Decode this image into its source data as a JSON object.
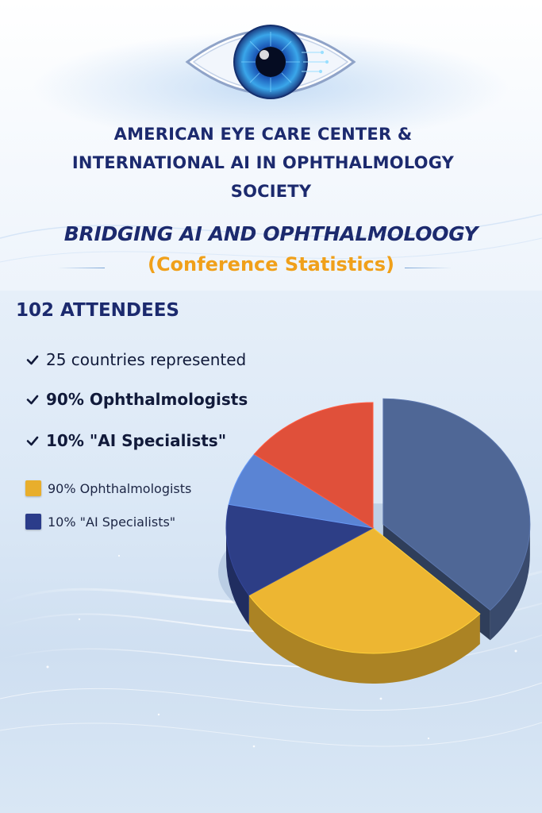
{
  "header": {
    "org_lines": [
      "AMERICAN EYE CARE CENTER &",
      "INTERNATIONAL AI IN OPHTHALMOLOGY",
      "SOCIETY"
    ],
    "title": "BRIDGING AI AND OPHTHALMOLOOGY",
    "subtitle": "(Conference Statistics)"
  },
  "stats": {
    "attendees": "102 ATTENDEES",
    "items": [
      "25 countries represented",
      "90% Ophthalmologists",
      "10% \"AI Specialists\""
    ]
  },
  "colors": {
    "navy": "#1c2a6e",
    "accent_orange": "#f0a01a",
    "slice_slate_blue": "#4f6796",
    "slice_gold": "#edb632",
    "slice_navy": "#2d3e86",
    "slice_light_blue": "#5a84d4",
    "slice_red": "#e0503a"
  },
  "chart_data": {
    "type": "pie",
    "title": "",
    "legend_position": "left",
    "legend": [
      {
        "label": "90% Ophthalmologists",
        "color": "#e8ae2c"
      },
      {
        "label": "10% \"AI Specialists\"",
        "color": "#2b3c8a"
      }
    ],
    "slices": [
      {
        "value": 37,
        "color": "#4f6796",
        "exploded": true
      },
      {
        "value": 29,
        "color": "#edb632",
        "exploded": false
      },
      {
        "value": 12,
        "color": "#2d3e86",
        "exploded": false
      },
      {
        "value": 7,
        "color": "#5a84d4",
        "exploded": false
      },
      {
        "value": 15,
        "color": "#e0503a",
        "exploded": false
      }
    ]
  }
}
